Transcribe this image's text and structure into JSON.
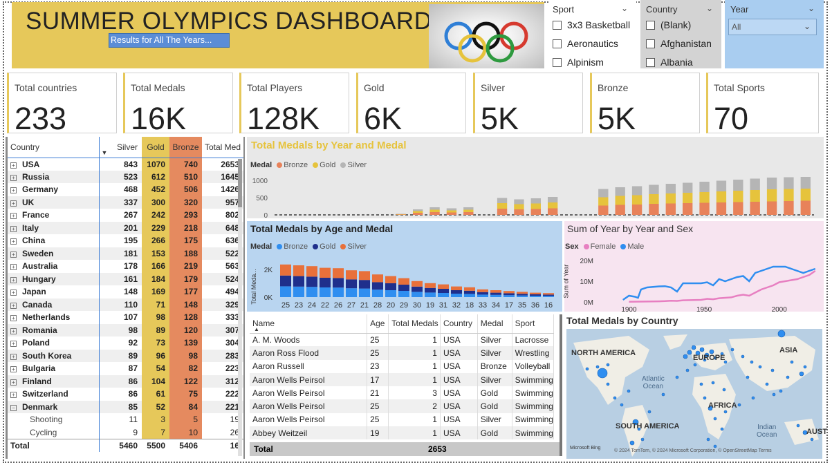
{
  "header": {
    "title": "SUMMER OLYMPICS DASHBOARD",
    "subtitle": "Results for All The Years...",
    "logo_icon": "olympic-rings-icon"
  },
  "slicers": {
    "sport": {
      "label": "Sport",
      "options": [
        "3x3 Basketball",
        "Aeronautics",
        "Alpinism"
      ]
    },
    "country": {
      "label": "Country",
      "options": [
        "(Blank)",
        "Afghanistan",
        "Albania"
      ]
    },
    "year": {
      "label": "Year",
      "selected": "All"
    }
  },
  "cards": [
    {
      "label": "Total countries",
      "value": "233"
    },
    {
      "label": "Total Medals",
      "value": "16K"
    },
    {
      "label": "Total Players",
      "value": "128K"
    },
    {
      "label": "Gold",
      "value": "6K"
    },
    {
      "label": "Silver",
      "value": "5K"
    },
    {
      "label": "Bronze",
      "value": "5K"
    },
    {
      "label": "Total Sports",
      "value": "70"
    }
  ],
  "matrix": {
    "headers": {
      "country": "Country",
      "silver": "Silver",
      "gold": "Gold",
      "bronze": "Bronze",
      "total": "Total Med"
    },
    "rows": [
      {
        "country": "USA",
        "silver": "843",
        "gold": "1070",
        "bronze": "740",
        "total": "2653",
        "exp": "+"
      },
      {
        "country": "Russia",
        "silver": "523",
        "gold": "612",
        "bronze": "510",
        "total": "1645",
        "exp": "+"
      },
      {
        "country": "Germany",
        "silver": "468",
        "gold": "452",
        "bronze": "506",
        "total": "1426",
        "exp": "+"
      },
      {
        "country": "UK",
        "silver": "337",
        "gold": "300",
        "bronze": "320",
        "total": "957",
        "exp": "+"
      },
      {
        "country": "France",
        "silver": "267",
        "gold": "242",
        "bronze": "293",
        "total": "802",
        "exp": "+"
      },
      {
        "country": "Italy",
        "silver": "201",
        "gold": "229",
        "bronze": "218",
        "total": "648",
        "exp": "+"
      },
      {
        "country": "China",
        "silver": "195",
        "gold": "266",
        "bronze": "175",
        "total": "636",
        "exp": "+"
      },
      {
        "country": "Sweden",
        "silver": "181",
        "gold": "153",
        "bronze": "188",
        "total": "522",
        "exp": "+"
      },
      {
        "country": "Australia",
        "silver": "178",
        "gold": "166",
        "bronze": "219",
        "total": "563",
        "exp": "+"
      },
      {
        "country": "Hungary",
        "silver": "161",
        "gold": "184",
        "bronze": "179",
        "total": "524",
        "exp": "+"
      },
      {
        "country": "Japan",
        "silver": "148",
        "gold": "169",
        "bronze": "177",
        "total": "494",
        "exp": "+"
      },
      {
        "country": "Canada",
        "silver": "110",
        "gold": "71",
        "bronze": "148",
        "total": "329",
        "exp": "+"
      },
      {
        "country": "Netherlands",
        "silver": "107",
        "gold": "98",
        "bronze": "128",
        "total": "333",
        "exp": "+"
      },
      {
        "country": "Romania",
        "silver": "98",
        "gold": "89",
        "bronze": "120",
        "total": "307",
        "exp": "+"
      },
      {
        "country": "Poland",
        "silver": "92",
        "gold": "73",
        "bronze": "139",
        "total": "304",
        "exp": "+"
      },
      {
        "country": "South Korea",
        "silver": "89",
        "gold": "96",
        "bronze": "98",
        "total": "283",
        "exp": "+"
      },
      {
        "country": "Bulgaria",
        "silver": "87",
        "gold": "54",
        "bronze": "82",
        "total": "223",
        "exp": "+"
      },
      {
        "country": "Finland",
        "silver": "86",
        "gold": "104",
        "bronze": "122",
        "total": "312",
        "exp": "+"
      },
      {
        "country": "Switzerland",
        "silver": "86",
        "gold": "61",
        "bronze": "75",
        "total": "222",
        "exp": "+"
      },
      {
        "country": "Denmark",
        "silver": "85",
        "gold": "52",
        "bronze": "84",
        "total": "221",
        "exp": "−"
      },
      {
        "country": "Shooting",
        "silver": "11",
        "gold": "3",
        "bronze": "5",
        "total": "19",
        "sub": true
      },
      {
        "country": "Cycling",
        "silver": "9",
        "gold": "7",
        "bronze": "10",
        "total": "26",
        "sub": true
      }
    ],
    "total": {
      "label": "Total",
      "silver": "5460",
      "gold": "5500",
      "bronze": "5406",
      "total": "16"
    }
  },
  "chart_year": {
    "title": "Total Medals by Year and Medal",
    "legend_title": "Medal",
    "legend": [
      "Bronze",
      "Gold",
      "Silver"
    ],
    "colors": {
      "Bronze": "#e8825a",
      "Gold": "#e6c33c",
      "Silver": "#b5b5b5"
    }
  },
  "chart_age": {
    "title": "Total Medals by Age and Medal",
    "legend_title": "Medal",
    "legend": [
      "Bronze",
      "Gold",
      "Silver"
    ],
    "ylabel": "Total Meda...",
    "colors": {
      "Bronze": "#2f8ef0",
      "Gold": "#1f2f8c",
      "Silver": "#e8703a"
    }
  },
  "chart_sex": {
    "title": "Sum of Year by Year and Sex",
    "legend_title": "Sex",
    "legend": [
      "Female",
      "Male"
    ],
    "ylabel": "Sum of Year",
    "colors": {
      "Female": "#e77fc1",
      "Male": "#2f8ef0"
    }
  },
  "map": {
    "title": "Total Medals by Country",
    "labels": [
      "NORTH AMERICA",
      "EUROPE",
      "ASIA",
      "Atlantic\nOcean",
      "AFRICA",
      "SOUTH AMERICA",
      "Indian\nOcean",
      "AUST"
    ],
    "bing": "Microsoft Bing",
    "attribution": "© 2024 TomTom, © 2024 Microsoft Corporation, © OpenStreetMap  Terms"
  },
  "table": {
    "headers": [
      "Name",
      "Age",
      "Total Medals",
      "Country",
      "Medal",
      "Sport"
    ],
    "rows": [
      [
        "A. M. Woods",
        "25",
        "1",
        "USA",
        "Silver",
        "Lacrosse"
      ],
      [
        "Aaron Ross Flood",
        "25",
        "1",
        "USA",
        "Silver",
        "Wrestling"
      ],
      [
        "Aaron Russell",
        "23",
        "1",
        "USA",
        "Bronze",
        "Volleyball"
      ],
      [
        "Aaron Wells Peirsol",
        "17",
        "1",
        "USA",
        "Silver",
        "Swimming"
      ],
      [
        "Aaron Wells Peirsol",
        "21",
        "3",
        "USA",
        "Gold",
        "Swimming"
      ],
      [
        "Aaron Wells Peirsol",
        "25",
        "2",
        "USA",
        "Gold",
        "Swimming"
      ],
      [
        "Aaron Wells Peirsol",
        "25",
        "1",
        "USA",
        "Silver",
        "Swimming"
      ],
      [
        "Abbey Weitzeil",
        "19",
        "1",
        "USA",
        "Gold",
        "Swimming"
      ]
    ],
    "total_label": "Total",
    "total_value": "2653"
  },
  "chart_data": [
    {
      "type": "bar",
      "stacked": true,
      "title": "Total Medals by Year and Medal",
      "yticks": [
        "1000",
        "500",
        "0"
      ],
      "ylim": [
        0,
        1000
      ],
      "series": [
        {
          "name": "Bronze",
          "values": [
            0,
            0,
            0,
            0,
            0,
            0,
            0,
            12,
            60,
            80,
            70,
            80,
            0,
            180,
            160,
            170,
            190,
            0,
            0,
            270,
            290,
            300,
            320,
            330,
            340,
            350,
            360,
            370,
            380,
            390,
            400,
            410
          ]
        },
        {
          "name": "Gold",
          "values": [
            0,
            0,
            0,
            0,
            0,
            0,
            0,
            10,
            50,
            70,
            60,
            70,
            0,
            160,
            150,
            160,
            170,
            0,
            0,
            240,
            260,
            270,
            280,
            290,
            300,
            310,
            320,
            330,
            340,
            350,
            350,
            350
          ]
        },
        {
          "name": "Silver",
          "values": [
            0,
            0,
            0,
            0,
            0,
            0,
            0,
            10,
            50,
            70,
            60,
            70,
            0,
            150,
            140,
            150,
            160,
            0,
            0,
            240,
            250,
            260,
            270,
            280,
            290,
            300,
            310,
            320,
            330,
            340,
            340,
            340
          ]
        }
      ]
    },
    {
      "type": "bar",
      "stacked": true,
      "title": "Total Medals by Age and Medal",
      "categories": [
        "25",
        "23",
        "24",
        "22",
        "26",
        "27",
        "21",
        "28",
        "20",
        "29",
        "30",
        "19",
        "31",
        "32",
        "18",
        "33",
        "34",
        "17",
        "35",
        "36",
        "16"
      ],
      "yticks": [
        "2K",
        "0K"
      ],
      "ylim": [
        0,
        2500
      ],
      "series": [
        {
          "name": "Bronze",
          "values": [
            780,
            760,
            740,
            700,
            690,
            640,
            620,
            540,
            500,
            450,
            380,
            330,
            300,
            250,
            230,
            180,
            160,
            140,
            120,
            100,
            90
          ]
        },
        {
          "name": "Gold",
          "values": [
            780,
            760,
            740,
            700,
            690,
            640,
            620,
            540,
            500,
            450,
            380,
            330,
            300,
            250,
            230,
            180,
            160,
            140,
            120,
            100,
            90
          ]
        },
        {
          "name": "Silver",
          "values": [
            800,
            780,
            760,
            720,
            710,
            660,
            640,
            560,
            520,
            470,
            400,
            350,
            320,
            270,
            250,
            200,
            180,
            160,
            140,
            120,
            110
          ]
        }
      ]
    },
    {
      "type": "line",
      "title": "Sum of Year by Year and Sex",
      "xticks": [
        "1900",
        "1950",
        "2000"
      ],
      "xlim": [
        1880,
        2025
      ],
      "yticks": [
        "20M",
        "10M",
        "0M"
      ],
      "ylim": [
        0,
        20
      ],
      "series": [
        {
          "name": "Male",
          "x": [
            1896,
            1900,
            1904,
            1906,
            1908,
            1912,
            1920,
            1924,
            1928,
            1932,
            1936,
            1948,
            1952,
            1956,
            1960,
            1964,
            1968,
            1972,
            1976,
            1980,
            1984,
            1988,
            1992,
            1996,
            2000,
            2004,
            2008,
            2012,
            2016,
            2020,
            2024
          ],
          "y": [
            1,
            3,
            2.5,
            2,
            6,
            7,
            7.5,
            7.6,
            7,
            5,
            9,
            9,
            9.5,
            8,
            11,
            10,
            11,
            12,
            12.5,
            10,
            14,
            15,
            16,
            17,
            17,
            17,
            16,
            15,
            14,
            15,
            16
          ]
        },
        {
          "name": "Female",
          "x": [
            1900,
            1912,
            1920,
            1924,
            1928,
            1932,
            1936,
            1948,
            1952,
            1956,
            1960,
            1964,
            1968,
            1972,
            1976,
            1980,
            1984,
            1988,
            1992,
            1996,
            2000,
            2004,
            2008,
            2012,
            2016,
            2020,
            2024
          ],
          "y": [
            0.1,
            0.2,
            0.3,
            0.4,
            0.6,
            0.5,
            0.8,
            1,
            1.5,
            1.3,
            1.8,
            2,
            2.2,
            3,
            3.5,
            3,
            4.5,
            6,
            7,
            8,
            9.5,
            10,
            10.5,
            11,
            12,
            13,
            15
          ]
        }
      ]
    }
  ]
}
